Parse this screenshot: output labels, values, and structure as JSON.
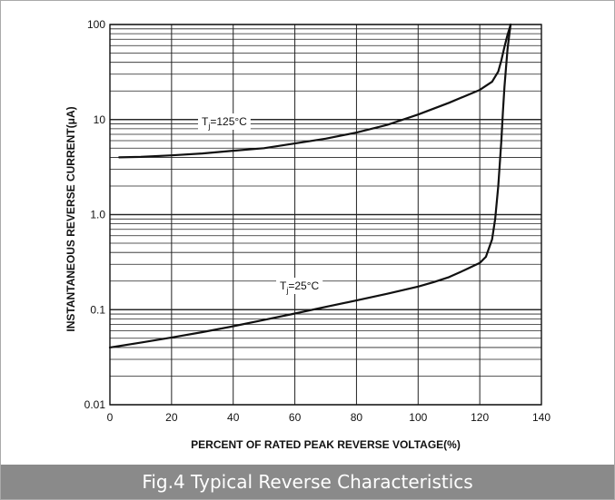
{
  "caption": "Fig.4 Typical Reverse Characteristics",
  "chart_data": {
    "type": "line",
    "title": "",
    "xlabel": "PERCENT OF RATED PEAK REVERSE VOLTAGE(%)",
    "ylabel": "INSTANTANEOUS REVERSE CURRENT(μA)",
    "xlim": [
      0,
      140
    ],
    "ylim": [
      0.01,
      100
    ],
    "yscale": "log",
    "grid": true,
    "x_ticks": [
      "0",
      "20",
      "40",
      "60",
      "80",
      "100",
      "120",
      "140"
    ],
    "x_tick_values": [
      0,
      20,
      40,
      60,
      80,
      100,
      120,
      140
    ],
    "y_ticks": [
      "0.01",
      "0.1",
      "1.0",
      "10",
      "100"
    ],
    "y_tick_values": [
      0.01,
      0.1,
      1,
      10,
      100
    ],
    "series": [
      {
        "name": "Tj=125°C",
        "label_main": "T",
        "label_sub": "j",
        "label_rest": "=125°C",
        "x": [
          3,
          10,
          20,
          30,
          40,
          50,
          60,
          70,
          80,
          90,
          100,
          110,
          120,
          124,
          126,
          127,
          128,
          129,
          129.5,
          130
        ],
        "y": [
          4.0,
          4.05,
          4.2,
          4.4,
          4.7,
          5.0,
          5.6,
          6.3,
          7.3,
          8.8,
          11.3,
          15,
          20.5,
          25,
          32,
          42,
          58,
          78,
          88,
          100
        ]
      },
      {
        "name": "Tj=25°C",
        "label_main": "T",
        "label_sub": "j",
        "label_rest": "=25°C",
        "x": [
          0,
          10,
          20,
          30,
          40,
          50,
          60,
          70,
          80,
          90,
          100,
          105,
          110,
          115,
          120,
          122,
          124,
          125,
          126,
          127,
          127.5,
          128,
          128.5,
          129,
          129.5,
          130
        ],
        "y": [
          0.04,
          0.045,
          0.051,
          0.058,
          0.067,
          0.078,
          0.091,
          0.107,
          0.125,
          0.147,
          0.175,
          0.195,
          0.22,
          0.26,
          0.31,
          0.36,
          0.55,
          0.9,
          2.0,
          6.0,
          12,
          22,
          35,
          55,
          75,
          100
        ]
      }
    ],
    "annotations": [
      {
        "series": 0,
        "text": "Tj=125°C"
      },
      {
        "series": 1,
        "text": "Tj=25°C"
      }
    ]
  }
}
